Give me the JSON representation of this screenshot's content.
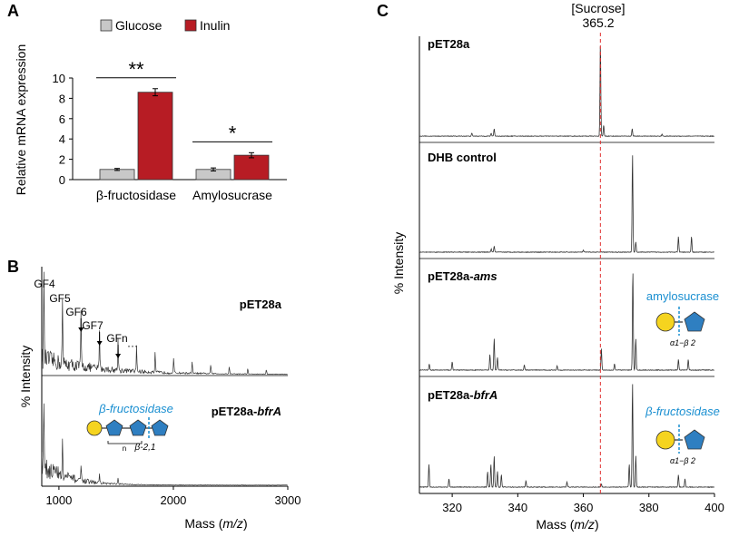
{
  "colors": {
    "glucose": "#c8c8c8",
    "inulin": "#b71c24",
    "trace": "#333333",
    "cleavage": "#1a8fd1",
    "glucose_unit": "#f5d41f",
    "fructose_unit": "#2f7fc1",
    "sucrose_line": "#e03030"
  },
  "panelA": {
    "label": "A",
    "chart_data": {
      "type": "bar",
      "title": "",
      "xlabel": "",
      "ylabel": "Relative mRNA expression",
      "ylim": [
        0,
        10
      ],
      "yticks": [
        "0",
        "2",
        "4",
        "6",
        "8",
        "10"
      ],
      "categories": [
        "β-fructosidase",
        "Amylosucrase"
      ],
      "series": [
        {
          "name": "Glucose",
          "values": [
            1.0,
            1.0
          ],
          "errors": [
            0.1,
            0.15
          ]
        },
        {
          "name": "Inulin",
          "values": [
            8.6,
            2.4
          ],
          "errors": [
            0.35,
            0.25
          ]
        }
      ],
      "significance": [
        "**",
        "*"
      ],
      "legend": "top"
    }
  },
  "panelB": {
    "label": "B",
    "chart_data": {
      "type": "line",
      "xlabel_main": "Mass (",
      "xlabel_italic": "m/z",
      "xlabel_end": ")",
      "ylabel": "% Intensity",
      "xlim": [
        850,
        3000
      ],
      "xticks": [
        "1000",
        "2000",
        "3000"
      ],
      "traces": [
        {
          "name": "pET28a",
          "peaks": [
            [
              869,
              1.0
            ],
            [
              1031,
              0.67
            ],
            [
              1193,
              0.53
            ],
            [
              1355,
              0.41
            ],
            [
              1517,
              0.33
            ],
            [
              1679,
              0.27
            ],
            [
              1841,
              0.2
            ],
            [
              2003,
              0.16
            ],
            [
              2165,
              0.12
            ],
            [
              2327,
              0.1
            ],
            [
              2489,
              0.08
            ],
            [
              2651,
              0.06
            ],
            [
              2813,
              0.05
            ]
          ],
          "annotations": [
            {
              "text": "GF4",
              "mass": 869
            },
            {
              "text": "GF5",
              "mass": 1031
            },
            {
              "text": "GF6",
              "mass": 1193
            },
            {
              "text": "GF7",
              "mass": 1355
            },
            {
              "text": "GFn",
              "mass": 1517
            },
            {
              "text": "···",
              "mass": 1679
            }
          ]
        },
        {
          "name": "pET28a-bfrA",
          "name_main": "pET28a-",
          "name_italic": "bfrA",
          "peaks": [
            [
              869,
              0.7
            ],
            [
              1031,
              0.32
            ],
            [
              1193,
              0.18
            ],
            [
              1355,
              0.1
            ],
            [
              1517,
              0.06
            ]
          ],
          "enzyme_label": "β-fructosidase",
          "bond_label": "β-2,1",
          "repeat_label": "n"
        }
      ]
    }
  },
  "panelC": {
    "label": "C",
    "sucrose_label": "[Sucrose]",
    "sucrose_mass_label": "365.2",
    "chart_data": {
      "type": "line",
      "xlabel_main": "Mass (",
      "xlabel_italic": "m/z",
      "xlabel_end": ")",
      "ylabel": "% Intensity",
      "xlim": [
        310,
        400
      ],
      "xticks": [
        "320",
        "340",
        "360",
        "380",
        "400"
      ],
      "sucrose_mz": 365.2,
      "traces": [
        {
          "name": "pET28a",
          "name_main": "pET28a",
          "name_italic": "",
          "peaks": [
            [
              365.2,
              1.0
            ],
            [
              366.2,
              0.12
            ],
            [
              332.8,
              0.08
            ],
            [
              374.9,
              0.08
            ],
            [
              326,
              0.03
            ],
            [
              331.9,
              0.03
            ],
            [
              384,
              0.02
            ]
          ]
        },
        {
          "name": "DHB control",
          "name_main": "DHB control",
          "name_italic": "",
          "peaks": [
            [
              375.0,
              0.95
            ],
            [
              389.0,
              0.15
            ],
            [
              393.0,
              0.15
            ],
            [
              332.8,
              0.06
            ],
            [
              376.0,
              0.1
            ],
            [
              331.9,
              0.03
            ],
            [
              360,
              0.02
            ]
          ]
        },
        {
          "name": "pET28a-ams",
          "name_main": "pET28a-",
          "name_italic": "ams",
          "peaks": [
            [
              375.1,
              0.95
            ],
            [
              376.0,
              0.3
            ],
            [
              332.8,
              0.3
            ],
            [
              333.8,
              0.12
            ],
            [
              331.5,
              0.15
            ],
            [
              365.5,
              0.2
            ],
            [
              389.0,
              0.1
            ],
            [
              392.0,
              0.1
            ],
            [
              320,
              0.08
            ],
            [
              313,
              0.06
            ],
            [
              342,
              0.05
            ],
            [
              352,
              0.04
            ],
            [
              369.5,
              0.06
            ]
          ],
          "enzyme_label": "amylosucrase",
          "bond_label": "α1−β 2"
        },
        {
          "name": "pET28a-bfrA",
          "name_main": "pET28a-",
          "name_italic": "bfrA",
          "peaks": [
            [
              375.0,
              1.0
            ],
            [
              376.0,
              0.3
            ],
            [
              374.0,
              0.22
            ],
            [
              312.9,
              0.22
            ],
            [
              332.8,
              0.3
            ],
            [
              331.8,
              0.22
            ],
            [
              330.8,
              0.15
            ],
            [
              333.8,
              0.15
            ],
            [
              335.0,
              0.12
            ],
            [
              319.0,
              0.08
            ],
            [
              342.5,
              0.06
            ],
            [
              355,
              0.05
            ],
            [
              389.0,
              0.12
            ],
            [
              391.0,
              0.08
            ],
            [
              365.5,
              0.03
            ]
          ],
          "enzyme_label": "β-fructosidase",
          "bond_label": "α1−β 2"
        }
      ]
    }
  },
  "legend": {
    "glucose": "Glucose",
    "inulin": "Inulin"
  }
}
